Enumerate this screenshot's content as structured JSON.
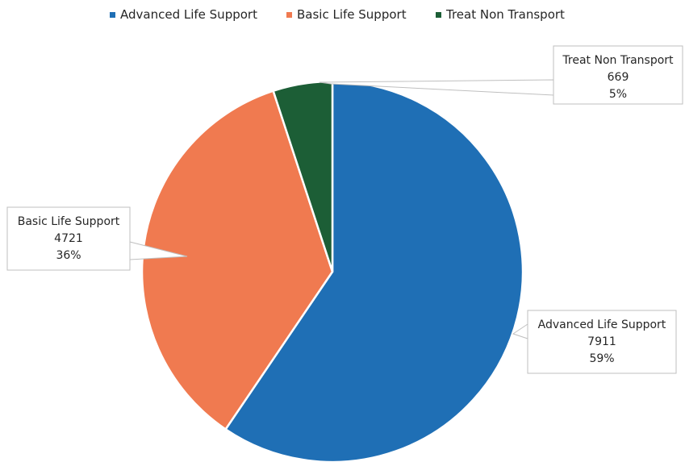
{
  "chart_data": {
    "type": "pie",
    "title": "",
    "categories": [
      "Advanced Life Support",
      "Basic Life Support",
      "Treat Non Transport"
    ],
    "values": [
      7911,
      4721,
      669
    ],
    "percent_labels": [
      "59%",
      "36%",
      "5%"
    ],
    "value_labels": [
      "7911",
      "4721",
      "669"
    ],
    "colors": [
      "#1f6fb5",
      "#f07a50",
      "#1c5e36"
    ],
    "legend": {
      "position": "top",
      "entries": [
        "Advanced Life Support",
        "Basic Life Support",
        "Treat Non Transport"
      ]
    },
    "data_label_style": "callout",
    "start_angle": "12 o'clock",
    "direction": "clockwise"
  }
}
